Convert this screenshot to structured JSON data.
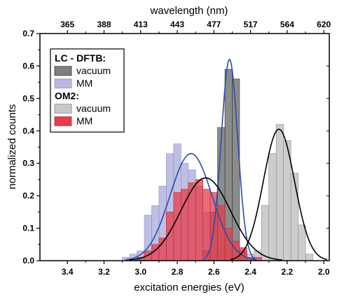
{
  "chart_data": {
    "type": "bar",
    "xlabel": "excitation energies (eV)",
    "ylabel": "normalized counts",
    "x2label": "wavelength (nm)",
    "xlim": [
      3.55,
      1.97
    ],
    "ylim": [
      0,
      0.7
    ],
    "x_ticks": [
      "3.4",
      "3.2",
      "3.0",
      "2.8",
      "2.6",
      "2.4",
      "2.2",
      "2.0"
    ],
    "x_tick_values": [
      3.4,
      3.2,
      3.0,
      2.8,
      2.6,
      2.4,
      2.2,
      2.0
    ],
    "y_ticks": [
      "0.0",
      "0.1",
      "0.2",
      "0.3",
      "0.4",
      "0.5",
      "0.6",
      "0.7"
    ],
    "y_tick_values": [
      0,
      0.1,
      0.2,
      0.3,
      0.4,
      0.5,
      0.6,
      0.7
    ],
    "top_ticks": [
      "365",
      "388",
      "413",
      "443",
      "477",
      "517",
      "564",
      "620"
    ],
    "bin_width": 0.04,
    "legend_groups": [
      {
        "title": "LC - DFTB:",
        "entries": [
          {
            "label": "vacuum",
            "series": 0
          },
          {
            "label": "MM",
            "series": 1
          }
        ]
      },
      {
        "title": "OM2:",
        "entries": [
          {
            "label": "vacuum",
            "series": 2
          },
          {
            "label": "MM",
            "series": 3
          }
        ]
      }
    ],
    "legend_placement": "top-left",
    "series": [
      {
        "colors": {
          "fill": "#7f7f7f",
          "stroke": "#333333",
          "curve": "#2b4cae"
        },
        "bin_start": [
          2.42,
          2.46,
          2.5,
          2.54,
          2.58,
          2.62
        ],
        "values": [
          0.03,
          0.56,
          0.59,
          0.41,
          0.15,
          0.03
        ],
        "fit": {
          "mean": 2.515,
          "sigma": 0.045,
          "amplitude": 0.62
        }
      },
      {
        "colors": {
          "fill": "#b8b8e0",
          "stroke": "#8e8ec4",
          "curve": "#2b4cae"
        },
        "bin_start": [
          2.54,
          2.58,
          2.62,
          2.66,
          2.7,
          2.74,
          2.78,
          2.82,
          2.86,
          2.9,
          2.94,
          2.98,
          3.02,
          3.06
        ],
        "values": [
          0.03,
          0.09,
          0.15,
          0.23,
          0.28,
          0.3,
          0.36,
          0.33,
          0.23,
          0.17,
          0.14,
          0.03,
          0.02,
          0.01
        ],
        "fit": {
          "mean": 2.725,
          "sigma": 0.115,
          "amplitude": 0.33
        }
      },
      {
        "colors": {
          "fill": "#c8c8c8",
          "stroke": "#888888",
          "curve": "#000000"
        },
        "bin_start": [
          2.06,
          2.1,
          2.14,
          2.18,
          2.22,
          2.26,
          2.3,
          2.34,
          2.38
        ],
        "values": [
          0.02,
          0.11,
          0.27,
          0.37,
          0.42,
          0.33,
          0.17,
          0.03,
          0.02
        ],
        "fit": {
          "mean": 2.245,
          "sigma": 0.085,
          "amplitude": 0.405
        }
      },
      {
        "colors": {
          "fill": "#e83b4a",
          "stroke": "#b0303a",
          "curve": "#000000"
        },
        "bin_start": [
          2.34,
          2.38,
          2.42,
          2.46,
          2.5,
          2.54,
          2.58,
          2.62,
          2.66,
          2.7,
          2.74,
          2.78,
          2.82,
          2.86,
          2.9,
          2.94,
          2.98
        ],
        "values": [
          0.01,
          0.01,
          0.04,
          0.06,
          0.1,
          0.17,
          0.21,
          0.22,
          0.25,
          0.24,
          0.22,
          0.21,
          0.15,
          0.07,
          0.05,
          0.03,
          0.01
        ],
        "fit": {
          "mean": 2.645,
          "sigma": 0.135,
          "amplitude": 0.255
        }
      }
    ]
  }
}
